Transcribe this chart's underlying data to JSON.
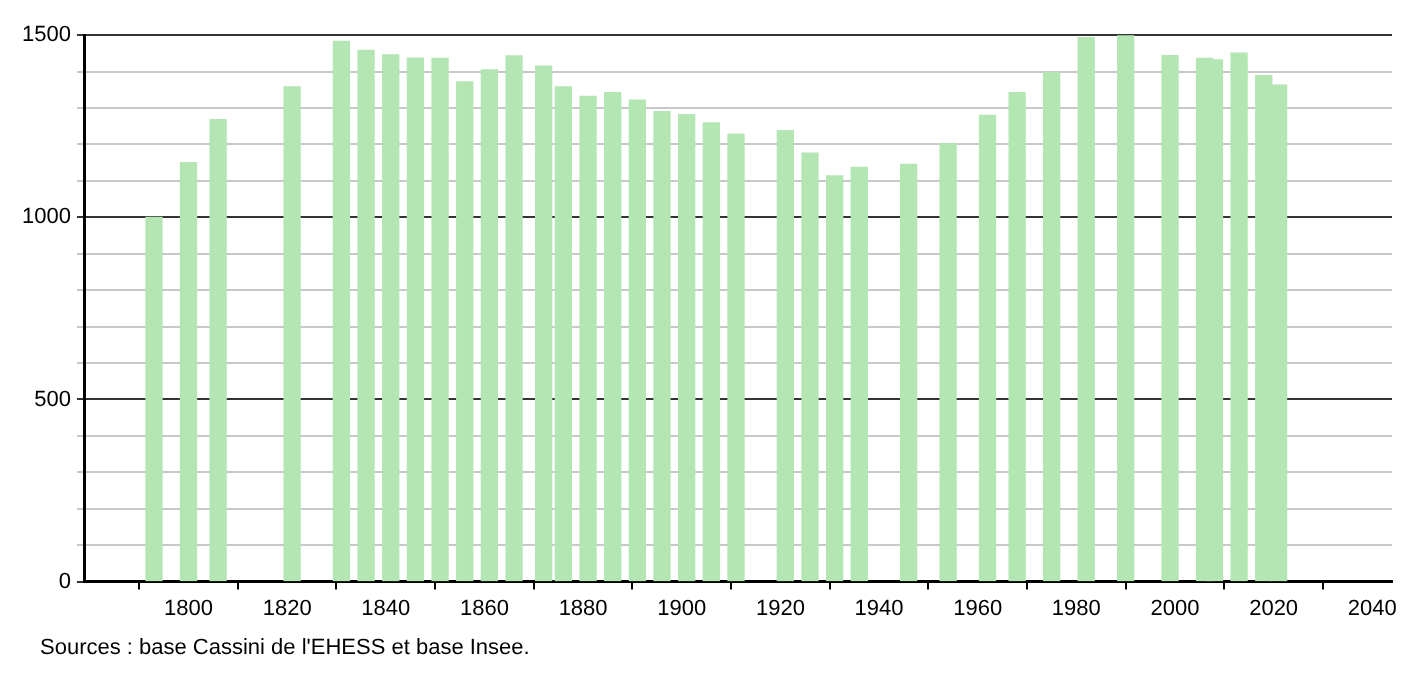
{
  "chart_data": {
    "type": "bar",
    "annotations": [
      "Sources : base Cassini de l'EHESS et base Insee."
    ],
    "x": [
      1793,
      1800,
      1806,
      1821,
      1831,
      1836,
      1841,
      1846,
      1851,
      1856,
      1861,
      1866,
      1872,
      1876,
      1881,
      1886,
      1891,
      1896,
      1901,
      1906,
      1911,
      1921,
      1926,
      1931,
      1936,
      1946,
      1954,
      1962,
      1968,
      1975,
      1982,
      1990,
      1999,
      2006,
      2008,
      2013,
      2018,
      2021
    ],
    "values": [
      1000,
      1150,
      1268,
      1358,
      1483,
      1458,
      1446,
      1437,
      1436,
      1372,
      1405,
      1443,
      1415,
      1358,
      1332,
      1342,
      1322,
      1290,
      1282,
      1259,
      1228,
      1238,
      1176,
      1114,
      1137,
      1145,
      1202,
      1280,
      1342,
      1398,
      1493,
      1500,
      1444,
      1436,
      1432,
      1451,
      1389,
      1363
    ],
    "color": "#b3e6b3",
    "xlim": [
      1779,
      2044
    ],
    "xticks": [
      1800,
      1820,
      1840,
      1860,
      1880,
      1900,
      1920,
      1940,
      1960,
      1980,
      2000,
      2020,
      2040
    ],
    "ylim": [
      0,
      1500
    ],
    "yticks": [
      0,
      {
        "value": 100,
        "label": null
      },
      {
        "value": 200,
        "label": null
      },
      {
        "value": 300,
        "label": null
      },
      {
        "value": 400,
        "label": null
      },
      500,
      {
        "value": 600,
        "label": null
      },
      {
        "value": 700,
        "label": null
      },
      {
        "value": 800,
        "label": null
      },
      {
        "value": 900,
        "label": null
      },
      1000,
      {
        "value": 1100,
        "label": null
      },
      {
        "value": 1200,
        "label": null
      },
      {
        "value": 1300,
        "label": null
      },
      {
        "value": 1400,
        "label": null
      },
      1500
    ],
    "grid": "y",
    "legend": false
  }
}
